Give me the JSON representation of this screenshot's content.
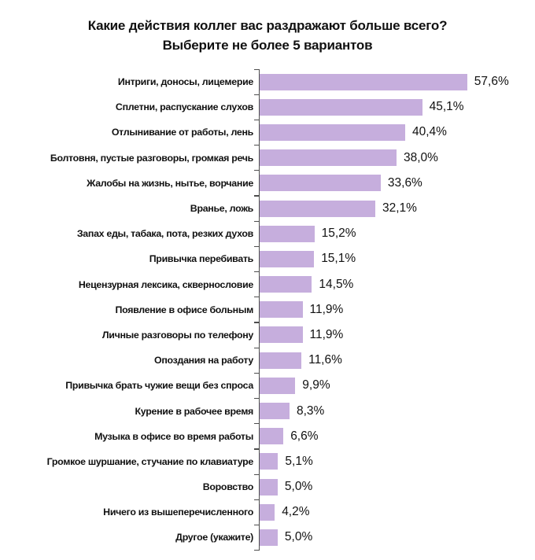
{
  "title": {
    "line1": "Какие действия коллег вас раздражают больше всего?",
    "line2": "Выберите не более 5 вариантов"
  },
  "chart_data": {
    "type": "bar",
    "orientation": "horizontal",
    "title": "Какие действия коллег вас раздражают больше всего? Выберите не более 5 вариантов",
    "xlabel": "",
    "ylabel": "",
    "xlim": [
      0,
      60
    ],
    "grid": false,
    "legend": false,
    "bar_color": "#c6aedd",
    "axis_color": "#4d4d4d",
    "categories": [
      "Интриги, доносы, лицемерие",
      "Сплетни, распускание слухов",
      "Отлынивание от работы, лень",
      "Болтовня, пустые разговоры, громкая речь",
      "Жалобы на жизнь, нытье, ворчание",
      "Вранье, ложь",
      "Запах еды, табака, пота, резких духов",
      "Привычка перебивать",
      "Нецензурная лексика, сквернословие",
      "Появление в офисе больным",
      "Личные разговоры по телефону",
      "Опоздания на работу",
      "Привычка брать чужие вещи без спроса",
      "Курение в рабочее время",
      "Музыка в офисе во время работы",
      "Громкое шуршание, стучание по клавиатуре",
      "Воровство",
      "Ничего из вышеперечисленного",
      "Другое (укажите)"
    ],
    "values": [
      57.6,
      45.1,
      40.4,
      38.0,
      33.6,
      32.1,
      15.2,
      15.1,
      14.5,
      11.9,
      11.9,
      11.6,
      9.9,
      8.3,
      6.6,
      5.1,
      5.0,
      4.2,
      5.0
    ],
    "value_labels": [
      "57,6%",
      "45,1%",
      "40,4%",
      "38,0%",
      "33,6%",
      "32,1%",
      "15,2%",
      "15,1%",
      "14,5%",
      "11,9%",
      "11,9%",
      "11,6%",
      "9,9%",
      "8,3%",
      "6,6%",
      "5,1%",
      "5,0%",
      "4,2%",
      "5,0%"
    ]
  }
}
